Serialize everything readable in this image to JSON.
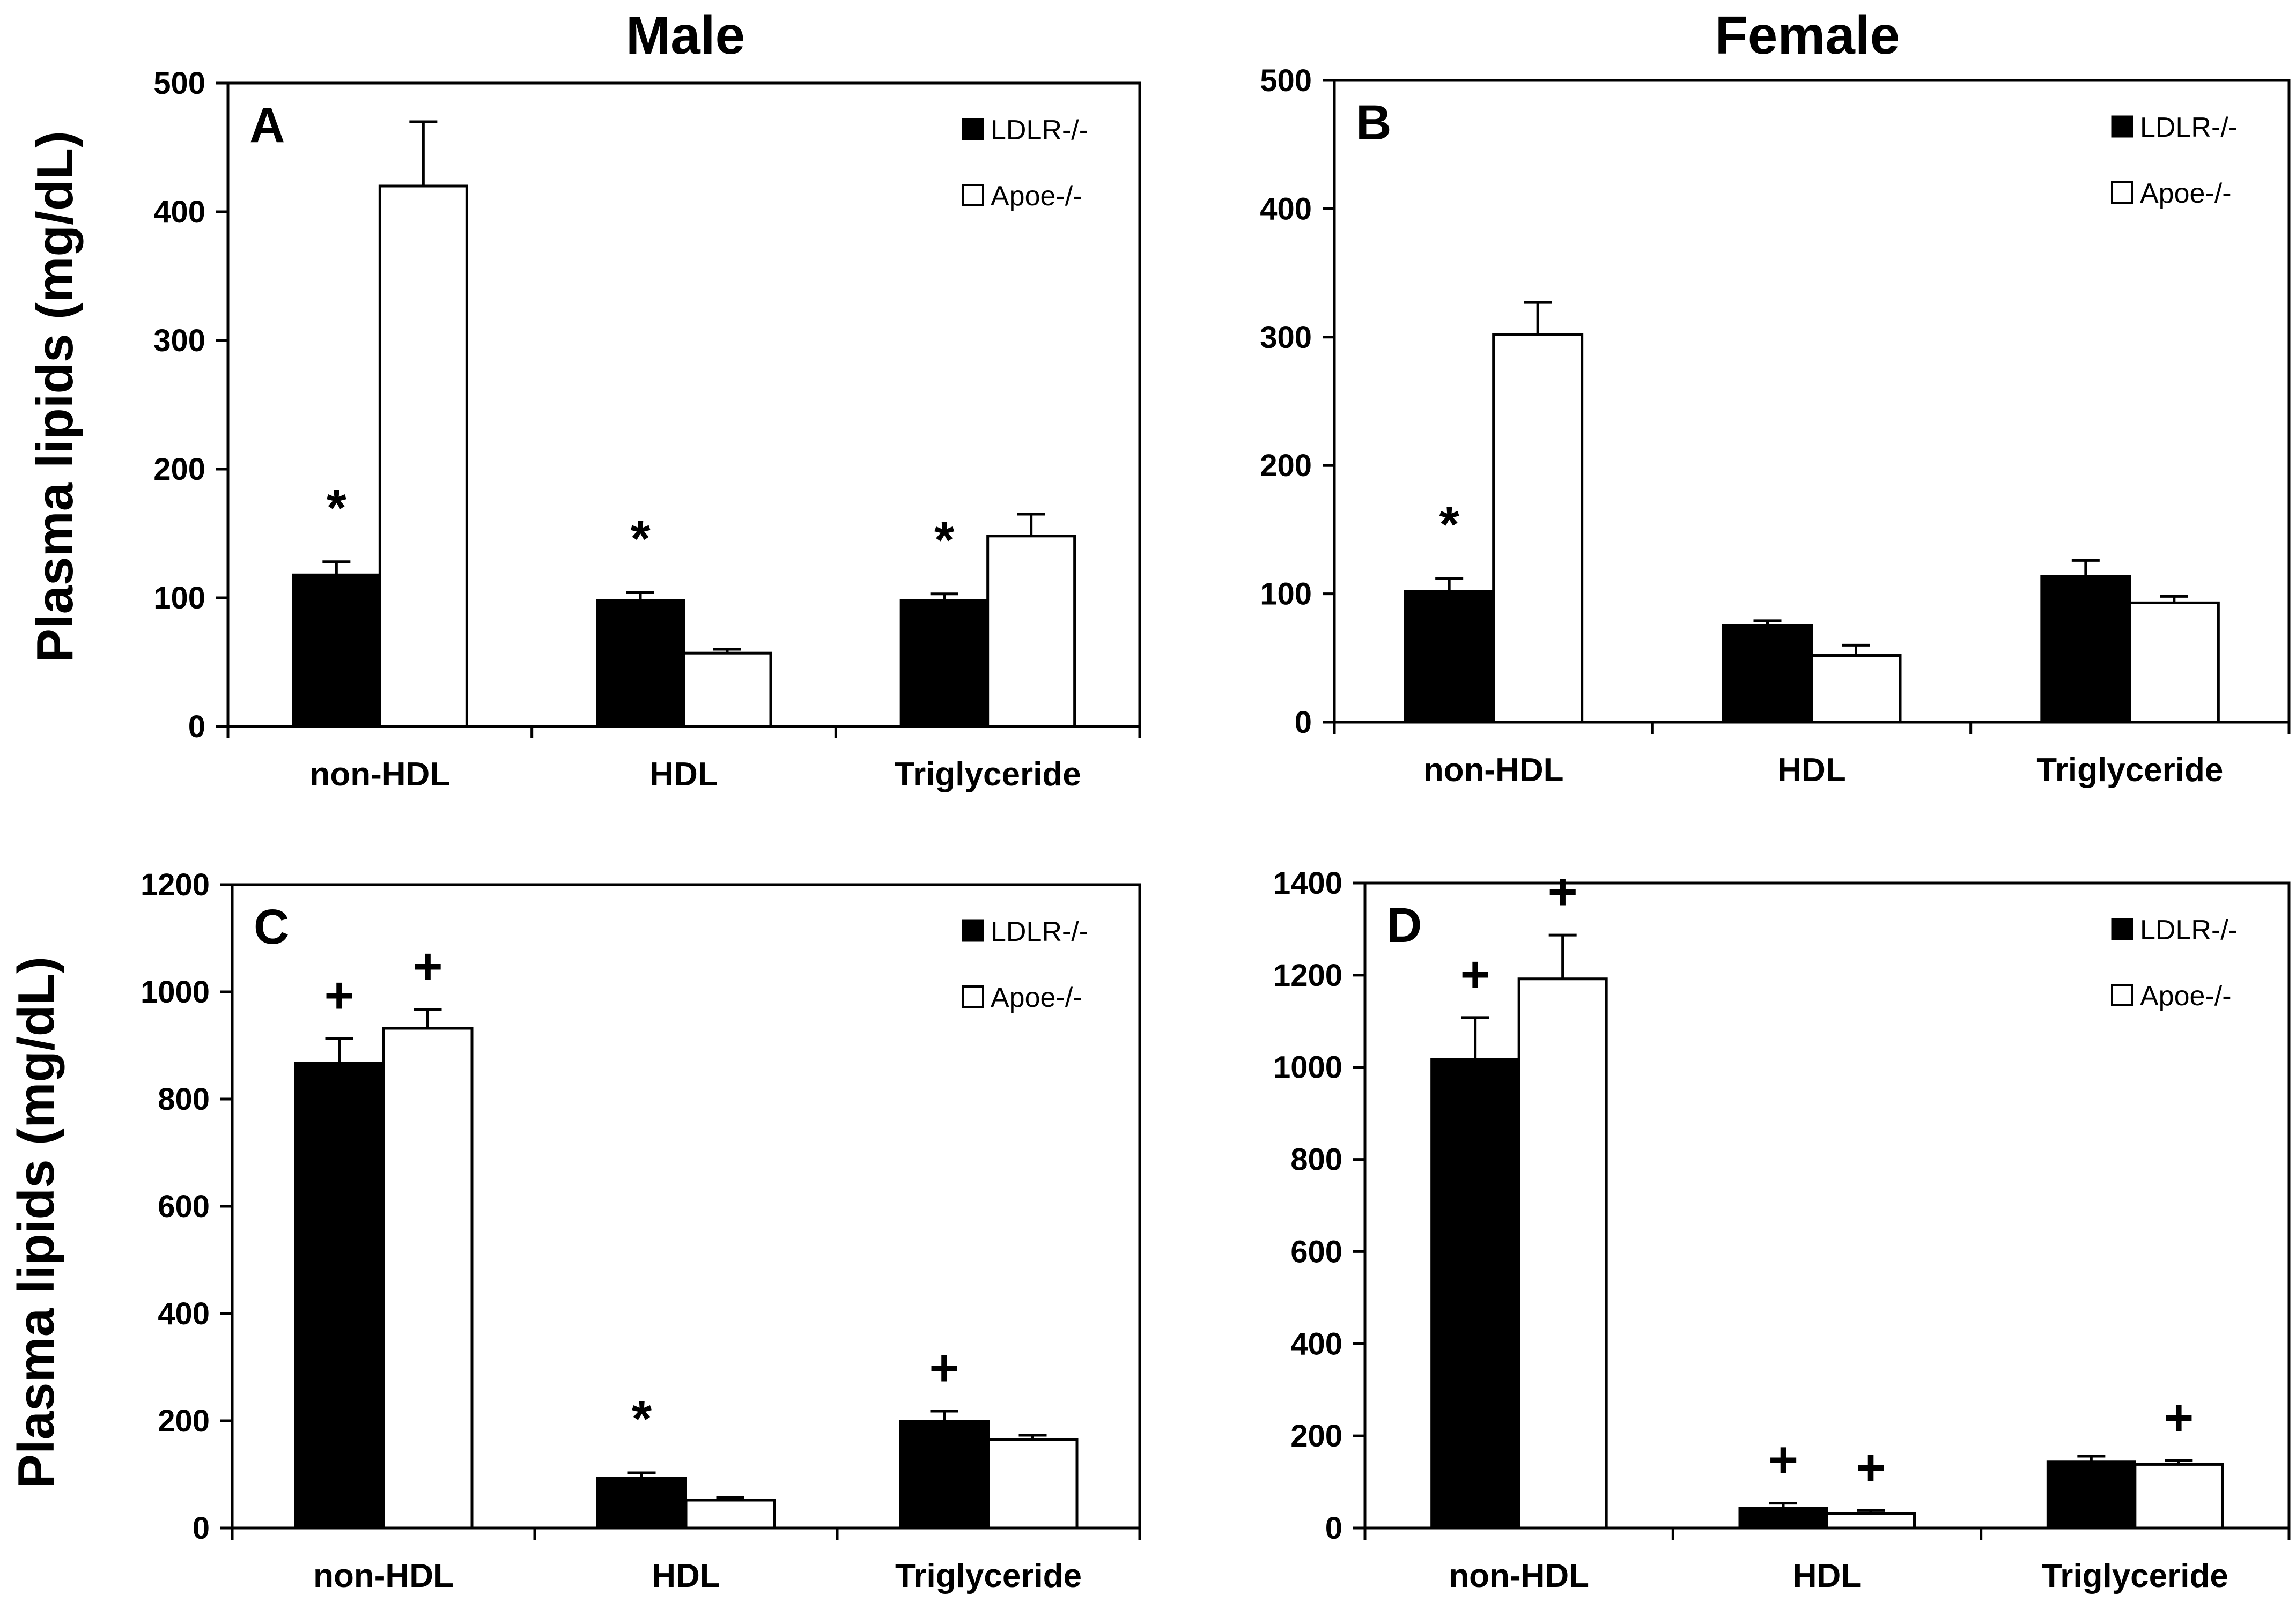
{
  "figure": {
    "column_titles": [
      "Male",
      "Female"
    ],
    "ylabel_top": "Plasma lipids (mg/dL)",
    "ylabel_bottom": "Plasma lipids (mg/dL)"
  },
  "legend": {
    "ldlr": "LDLR-/-",
    "apoe": "Apoe-/-"
  },
  "colors": {
    "ldlr": "#000000",
    "apoe": "#ffffff",
    "axis": "#000000"
  },
  "chart_data": [
    {
      "panel": "A",
      "type": "bar",
      "title": "Male",
      "ylabel": "Plasma lipids (mg/dL)",
      "ylim": [
        0,
        500
      ],
      "yticks": [
        0,
        100,
        200,
        300,
        400,
        500
      ],
      "categories": [
        "non-HDL",
        "HDL",
        "Triglyceride"
      ],
      "series": [
        {
          "name": "LDLR-/-",
          "values": [
            118,
            98,
            98
          ],
          "errors": [
            10,
            6,
            5
          ]
        },
        {
          "name": "Apoe-/-",
          "values": [
            420,
            57,
            148
          ],
          "errors": [
            50,
            3,
            17
          ]
        }
      ],
      "annotations": [
        {
          "category": "non-HDL",
          "series": "LDLR-/-",
          "mark": "*"
        },
        {
          "category": "HDL",
          "series": "LDLR-/-",
          "mark": "*"
        },
        {
          "category": "Triglyceride",
          "series": "LDLR-/-",
          "mark": "*"
        }
      ],
      "legend_position": "top-right"
    },
    {
      "panel": "B",
      "type": "bar",
      "title": "Female",
      "ylabel": "",
      "ylim": [
        0,
        500
      ],
      "yticks": [
        0,
        100,
        200,
        300,
        400,
        500
      ],
      "categories": [
        "non-HDL",
        "HDL",
        "Triglyceride"
      ],
      "series": [
        {
          "name": "LDLR-/-",
          "values": [
            102,
            76,
            114
          ],
          "errors": [
            10,
            3,
            12
          ]
        },
        {
          "name": "Apoe-/-",
          "values": [
            302,
            52,
            93
          ],
          "errors": [
            25,
            8,
            5
          ]
        }
      ],
      "annotations": [
        {
          "category": "non-HDL",
          "series": "LDLR-/-",
          "mark": "*"
        }
      ],
      "legend_position": "top-right"
    },
    {
      "panel": "C",
      "type": "bar",
      "title": "",
      "ylabel": "Plasma lipids (mg/dL)",
      "ylim": [
        0,
        1200
      ],
      "yticks": [
        0,
        200,
        400,
        600,
        800,
        1000,
        1200
      ],
      "categories": [
        "non-HDL",
        "HDL",
        "Triglyceride"
      ],
      "series": [
        {
          "name": "LDLR-/-",
          "values": [
            868,
            93,
            200
          ],
          "errors": [
            45,
            10,
            18
          ]
        },
        {
          "name": "Apoe-/-",
          "values": [
            932,
            52,
            165
          ],
          "errors": [
            35,
            5,
            8
          ]
        }
      ],
      "annotations": [
        {
          "category": "non-HDL",
          "series": "LDLR-/-",
          "mark": "+"
        },
        {
          "category": "non-HDL",
          "series": "Apoe-/-",
          "mark": "+"
        },
        {
          "category": "HDL",
          "series": "LDLR-/-",
          "mark": "*"
        },
        {
          "category": "Triglyceride",
          "series": "LDLR-/-",
          "mark": "+"
        }
      ],
      "legend_position": "top-right"
    },
    {
      "panel": "D",
      "type": "bar",
      "title": "",
      "ylabel": "",
      "ylim": [
        0,
        1400
      ],
      "yticks": [
        0,
        200,
        400,
        600,
        800,
        1000,
        1200,
        1400
      ],
      "categories": [
        "non-HDL",
        "HDL",
        "Triglyceride"
      ],
      "series": [
        {
          "name": "LDLR-/-",
          "values": [
            1018,
            44,
            144
          ],
          "errors": [
            90,
            10,
            12
          ]
        },
        {
          "name": "Apoe-/-",
          "values": [
            1192,
            32,
            138
          ],
          "errors": [
            95,
            6,
            8
          ]
        }
      ],
      "annotations": [
        {
          "category": "non-HDL",
          "series": "LDLR-/-",
          "mark": "+"
        },
        {
          "category": "non-HDL",
          "series": "Apoe-/-",
          "mark": "+"
        },
        {
          "category": "HDL",
          "series": "LDLR-/-",
          "mark": "+"
        },
        {
          "category": "HDL",
          "series": "Apoe-/-",
          "mark": "+"
        },
        {
          "category": "Triglyceride",
          "series": "Apoe-/-",
          "mark": "+"
        }
      ],
      "legend_position": "top-right"
    }
  ]
}
